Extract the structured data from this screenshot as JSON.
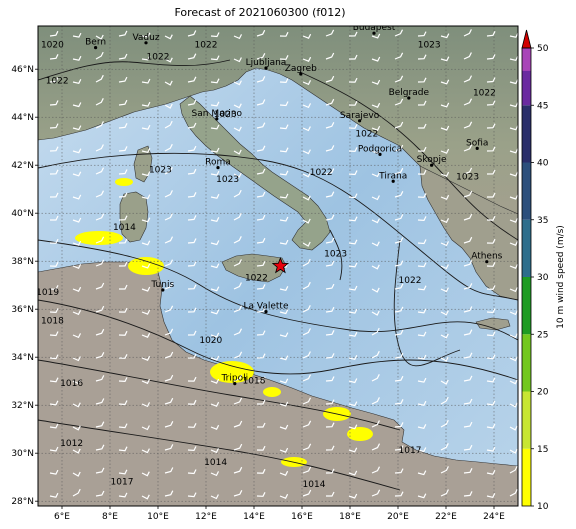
{
  "title": "Forecast of 2021060300 (f012)",
  "map": {
    "lon_range": [
      5,
      25
    ],
    "lat_range": [
      27.8,
      47.8
    ],
    "lon_ticks": [
      "6°E",
      "8°E",
      "10°E",
      "12°E",
      "14°E",
      "16°E",
      "18°E",
      "20°E",
      "22°E",
      "24°E"
    ],
    "lat_ticks": [
      "28°N",
      "30°N",
      "32°N",
      "34°N",
      "36°N",
      "38°N",
      "40°N",
      "42°N",
      "44°N",
      "46°N"
    ],
    "cities": [
      {
        "name": "Budapest",
        "lon": 19.0,
        "lat": 47.5
      },
      {
        "name": "Bern",
        "lon": 7.4,
        "lat": 46.9
      },
      {
        "name": "Vaduz",
        "lon": 9.5,
        "lat": 47.1
      },
      {
        "name": "Ljubljana",
        "lon": 14.5,
        "lat": 46.05
      },
      {
        "name": "Zagreb",
        "lon": 15.95,
        "lat": 45.8
      },
      {
        "name": "Belgrade",
        "lon": 20.45,
        "lat": 44.8
      },
      {
        "name": "San Marino",
        "lon": 12.45,
        "lat": 43.93
      },
      {
        "name": "Sarajevo",
        "lon": 18.4,
        "lat": 43.85
      },
      {
        "name": "Roma",
        "lon": 12.5,
        "lat": 41.9
      },
      {
        "name": "Podgorica",
        "lon": 19.25,
        "lat": 42.45
      },
      {
        "name": "Skopje",
        "lon": 21.4,
        "lat": 42.0
      },
      {
        "name": "Sofia",
        "lon": 23.3,
        "lat": 42.7
      },
      {
        "name": "Tirana",
        "lon": 19.8,
        "lat": 41.33
      },
      {
        "name": "Athens",
        "lon": 23.7,
        "lat": 37.98
      },
      {
        "name": "Tunis",
        "lon": 10.2,
        "lat": 36.8
      },
      {
        "name": "La Valette",
        "lon": 14.5,
        "lat": 35.9
      },
      {
        "name": "Tripoli",
        "lon": 13.2,
        "lat": 32.9
      }
    ],
    "marker": {
      "symbol": "star",
      "lon": 15.1,
      "lat": 37.8,
      "color": "#e8000d"
    },
    "contour_labels": [
      {
        "text": "1020",
        "lon": 5.6,
        "lat": 46.9
      },
      {
        "text": "1022",
        "lon": 5.8,
        "lat": 45.4
      },
      {
        "text": "1022",
        "lon": 10.0,
        "lat": 46.4
      },
      {
        "text": "1022",
        "lon": 12.0,
        "lat": 46.9
      },
      {
        "text": "1023",
        "lon": 21.3,
        "lat": 46.9
      },
      {
        "text": "1023",
        "lon": 12.8,
        "lat": 44.0
      },
      {
        "text": "1023",
        "lon": 10.1,
        "lat": 41.7
      },
      {
        "text": "1023",
        "lon": 12.9,
        "lat": 41.3
      },
      {
        "text": "1022",
        "lon": 16.8,
        "lat": 41.6
      },
      {
        "text": "1022",
        "lon": 18.7,
        "lat": 43.2
      },
      {
        "text": "1022",
        "lon": 23.6,
        "lat": 44.9
      },
      {
        "text": "1023",
        "lon": 22.9,
        "lat": 41.4
      },
      {
        "text": "1023",
        "lon": 17.4,
        "lat": 38.2
      },
      {
        "text": "1022",
        "lon": 14.1,
        "lat": 37.2
      },
      {
        "text": "1022",
        "lon": 20.5,
        "lat": 37.1
      },
      {
        "text": "1019",
        "lon": 5.4,
        "lat": 36.6
      },
      {
        "text": "1018",
        "lon": 5.6,
        "lat": 35.4
      },
      {
        "text": "1020",
        "lon": 12.2,
        "lat": 34.6
      },
      {
        "text": "1018",
        "lon": 14.0,
        "lat": 32.9
      },
      {
        "text": "1016",
        "lon": 6.4,
        "lat": 32.8
      },
      {
        "text": "1012",
        "lon": 6.4,
        "lat": 30.3
      },
      {
        "text": "1014",
        "lon": 12.4,
        "lat": 29.5
      },
      {
        "text": "1017",
        "lon": 8.5,
        "lat": 28.7
      },
      {
        "text": "1014",
        "lon": 16.5,
        "lat": 28.6
      },
      {
        "text": "1017",
        "lon": 20.5,
        "lat": 30.0
      },
      {
        "text": "1014",
        "lon": 8.6,
        "lat": 39.3
      }
    ],
    "colors": {
      "sea": "#b7d2ea",
      "sea_deep": "#8db8dc",
      "land": "#9c998a",
      "land_green": "#8fa58a",
      "desert": "#b0a497",
      "contour": "#1a1a1a",
      "wind_barb": "#ffffff",
      "wind_fill": "#ffff00"
    }
  },
  "colorbar": {
    "label": "10 m wind speed (m/s)",
    "ticks": [
      "10",
      "15",
      "20",
      "25",
      "30",
      "35",
      "40",
      "45",
      "50"
    ],
    "colors": [
      "#ffff00",
      "#c8e632",
      "#73c81e",
      "#1e9b23",
      "#2d6e8c",
      "#2c4f7c",
      "#2a2e6a",
      "#6a2aa0",
      "#a844b8"
    ],
    "extend_color": "#d00000"
  }
}
